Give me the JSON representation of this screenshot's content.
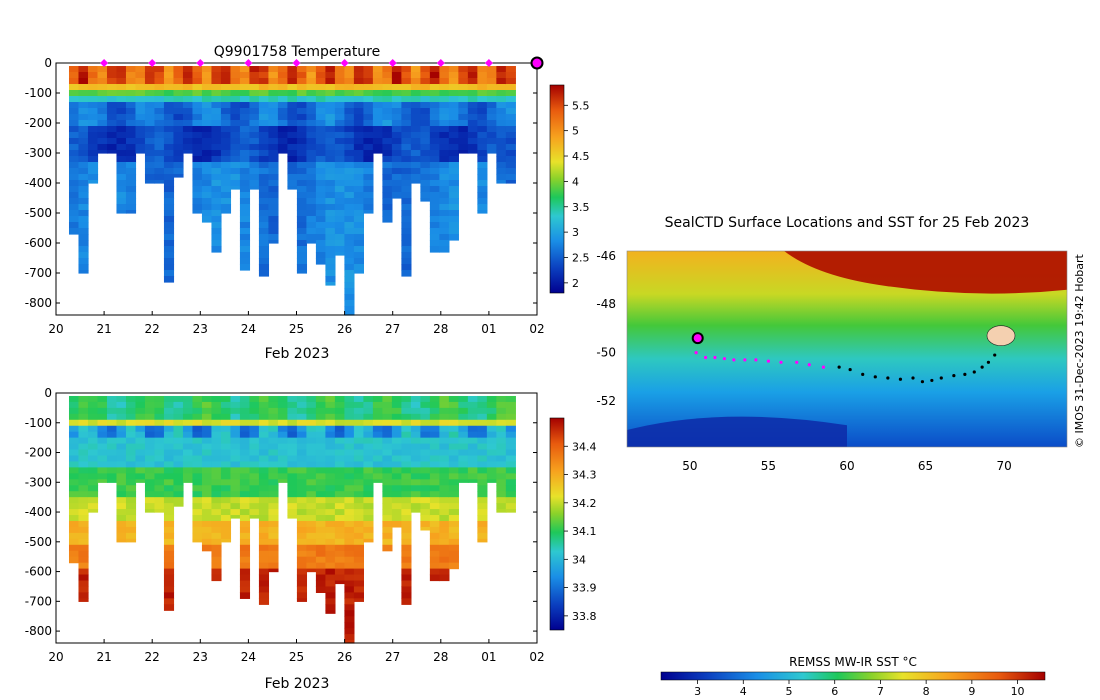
{
  "chart_data": [
    {
      "type": "heatmap",
      "title": "Q9901758  Temperature",
      "xlabel": "Feb 2023",
      "ylabel": "",
      "x_ticks": [
        "20",
        "21",
        "22",
        "23",
        "24",
        "25",
        "26",
        "27",
        "28",
        "01",
        "02"
      ],
      "y_ticks": [
        0,
        -100,
        -200,
        -300,
        -400,
        -500,
        -600,
        -700,
        -800
      ],
      "ylim": [
        -840,
        0
      ],
      "colorbar_ticks": [
        "2",
        "2.5",
        "3",
        "3.5",
        "4",
        "4.5",
        "5",
        "5.5"
      ],
      "colorbar_range": [
        1.8,
        5.9
      ],
      "surface_markers_days": [
        1,
        2,
        3,
        4,
        5,
        6,
        7,
        8,
        9
      ],
      "current_profile_day": 10,
      "profile_max_depths": [
        -570,
        -700,
        -400,
        -300,
        -300,
        -500,
        -500,
        -300,
        -400,
        -400,
        -730,
        -380,
        -300,
        -500,
        -530,
        -630,
        -500,
        -420,
        -690,
        -420,
        -710,
        -600,
        -300,
        -420,
        -700,
        -600,
        -670,
        -740,
        -640,
        -840,
        -700,
        -500,
        -300,
        -530,
        -450,
        -710,
        -400,
        -460,
        -630,
        -630,
        -590,
        -300,
        -300,
        -500,
        -300,
        -400,
        -400
      ]
    },
    {
      "type": "heatmap",
      "title": "",
      "xlabel": "Feb 2023",
      "ylabel": "",
      "x_ticks": [
        "20",
        "21",
        "22",
        "23",
        "24",
        "25",
        "26",
        "27",
        "28",
        "01",
        "02"
      ],
      "y_ticks": [
        0,
        -100,
        -200,
        -300,
        -400,
        -500,
        -600,
        -700,
        -800
      ],
      "ylim": [
        -840,
        0
      ],
      "colorbar_ticks": [
        "33.8",
        "33.9",
        "34",
        "34.1",
        "34.2",
        "34.3",
        "34.4"
      ],
      "colorbar_range": [
        33.75,
        34.5
      ]
    },
    {
      "type": "heatmap",
      "title": "SealCTD Surface Locations and SST for 25 Feb 2023",
      "x_ticks": [
        "50",
        "55",
        "60",
        "65",
        "70"
      ],
      "y_ticks": [
        "-46",
        "-48",
        "-50",
        "-52"
      ],
      "xlim": [
        46,
        74
      ],
      "ylim": [
        -53.9,
        -45.8
      ],
      "colorbar_label": "REMSS MW-IR SST °C",
      "colorbar_ticks": [
        "3",
        "4",
        "5",
        "6",
        "7",
        "8",
        "9",
        "10"
      ],
      "colorbar_range": [
        2.2,
        10.6
      ],
      "track": [
        [
          50.4,
          -50.0
        ],
        [
          51.0,
          -50.2
        ],
        [
          51.6,
          -50.2
        ],
        [
          52.2,
          -50.25
        ],
        [
          52.8,
          -50.3
        ],
        [
          53.5,
          -50.3
        ],
        [
          54.2,
          -50.3
        ],
        [
          55.0,
          -50.35
        ],
        [
          55.8,
          -50.4
        ],
        [
          56.8,
          -50.4
        ],
        [
          57.6,
          -50.5
        ],
        [
          58.5,
          -50.6
        ],
        [
          59.5,
          -50.6
        ],
        [
          60.2,
          -50.7
        ],
        [
          61.0,
          -50.9
        ],
        [
          61.8,
          -51.0
        ],
        [
          62.6,
          -51.05
        ],
        [
          63.4,
          -51.1
        ],
        [
          64.2,
          -51.05
        ],
        [
          64.8,
          -51.2
        ],
        [
          65.4,
          -51.15
        ],
        [
          66.0,
          -51.05
        ],
        [
          66.8,
          -50.95
        ],
        [
          67.5,
          -50.9
        ],
        [
          68.1,
          -50.8
        ],
        [
          68.6,
          -50.6
        ],
        [
          69.0,
          -50.4
        ],
        [
          69.4,
          -50.1
        ]
      ],
      "track_highlight_count": 12,
      "current_position": [
        50.5,
        -49.4
      ]
    }
  ],
  "copyright": "© IMOS 31-Dec-2023 19:42 Hobart"
}
